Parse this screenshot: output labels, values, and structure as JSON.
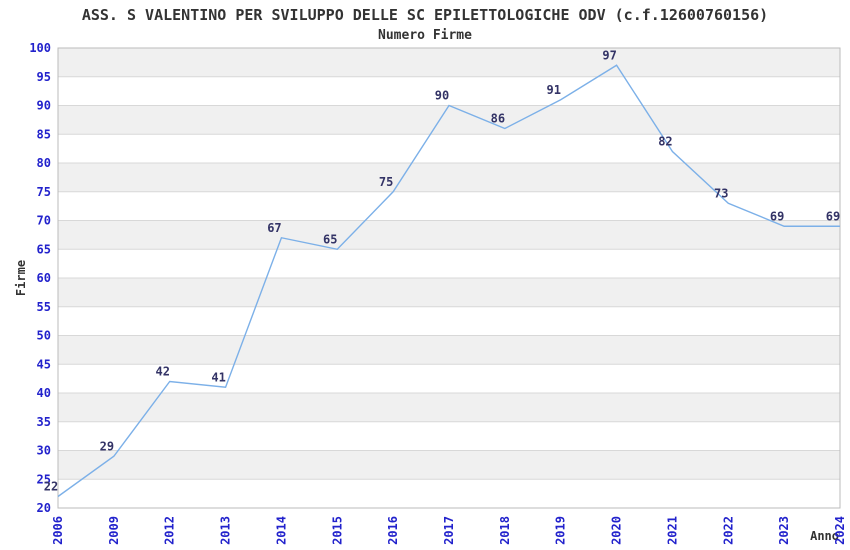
{
  "chart_data": {
    "type": "line",
    "title": "ASS. S VALENTINO PER SVILUPPO DELLE SC EPILETTOLOGICHE ODV (c.f.12600760156)",
    "subtitle": "Numero Firme",
    "xlabel": "Anno",
    "ylabel": "Firme",
    "categories": [
      "2006",
      "2009",
      "2012",
      "2013",
      "2014",
      "2015",
      "2016",
      "2017",
      "2018",
      "2019",
      "2020",
      "2021",
      "2022",
      "2023",
      "2024"
    ],
    "values": [
      22,
      29,
      42,
      41,
      67,
      65,
      75,
      90,
      86,
      91,
      97,
      82,
      73,
      69,
      69
    ],
    "ylim": [
      20,
      100
    ],
    "ytick_step": 5,
    "grid": "horizontal gridlines with alternating shaded bands",
    "legend": "none",
    "colors": {
      "line": "#7CB0E8",
      "tick_labels": "#2222CC",
      "data_labels": "#333366",
      "band_fill": "#F0F0F0",
      "gridline": "#D8D8D8",
      "plot_border": "#BBBBBB",
      "text": "#333333",
      "background": "#FFFFFF"
    }
  }
}
